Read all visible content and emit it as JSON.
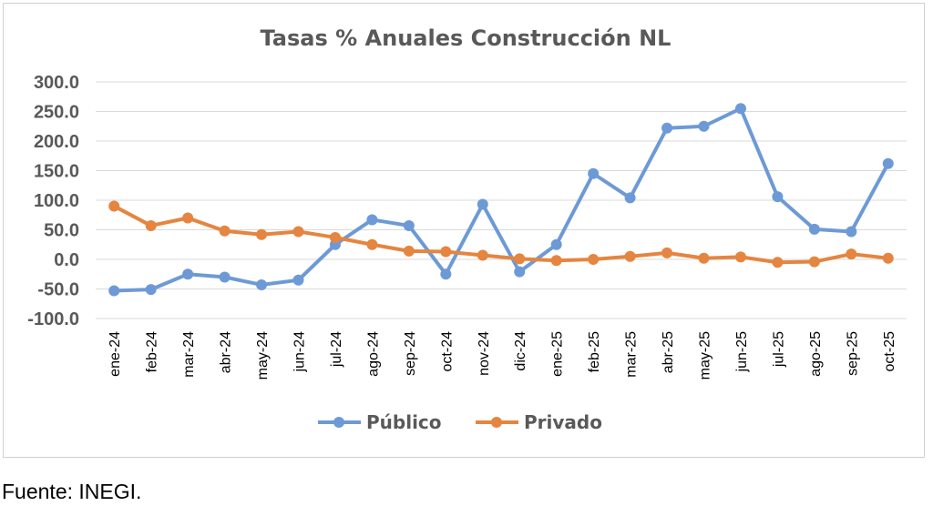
{
  "chart_data": {
    "type": "line",
    "title": "Tasas % Anuales Construcción NL",
    "categories": [
      "ene-24",
      "feb-24",
      "mar-24",
      "abr-24",
      "may-24",
      "jun-24",
      "jul-24",
      "ago-24",
      "sep-24",
      "oct-24",
      "nov-24",
      "dic-24",
      "ene-25",
      "feb-25",
      "mar-25",
      "abr-25",
      "may-25",
      "jun-25",
      "jul-25",
      "ago-25",
      "sep-25",
      "oct-25"
    ],
    "series": [
      {
        "name": "Público",
        "color": "#6d9ad6",
        "values": [
          -53,
          -51,
          -25,
          -30,
          -43,
          -35,
          25,
          67,
          57,
          -25,
          93,
          -21,
          25,
          145,
          104,
          222,
          225,
          255,
          106,
          51,
          47,
          162
        ]
      },
      {
        "name": "Privado",
        "color": "#e5853f",
        "values": [
          90,
          57,
          70,
          48,
          42,
          47,
          37,
          25,
          14,
          13,
          7,
          1,
          -2,
          0,
          5,
          11,
          2,
          4,
          -5,
          -4,
          9,
          2
        ]
      }
    ],
    "y_ticks": [
      "300.0",
      "250.0",
      "200.0",
      "150.0",
      "100.0",
      "50.0",
      "0.0",
      "-50.0",
      "-100.0"
    ],
    "ylim": [
      -100,
      300
    ],
    "legend_position": "bottom",
    "grid": true
  },
  "source_note": "Fuente: INEGI."
}
